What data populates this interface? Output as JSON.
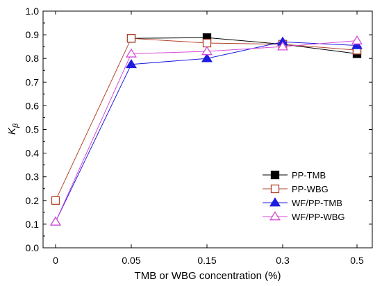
{
  "chart_data": {
    "type": "line",
    "categories": [
      "0",
      "0.05",
      "0.15",
      "0.3",
      "0.5"
    ],
    "xlabel": "TMB or WBG concentration (%)",
    "ylabel": "K",
    "ylabel_sub": "β",
    "ylim": [
      0.0,
      1.0
    ],
    "yticks": [
      "0.0",
      "0.1",
      "0.2",
      "0.3",
      "0.4",
      "0.5",
      "0.6",
      "0.7",
      "0.8",
      "0.9",
      "1.0"
    ],
    "grid": false,
    "legend_position": "center-right",
    "series": [
      {
        "name": "PP-TMB",
        "values": [
          null,
          0.885,
          0.888,
          0.86,
          0.82
        ],
        "color": "#000000",
        "marker": "square",
        "filled": true
      },
      {
        "name": "PP-WBG",
        "values": [
          0.2,
          0.885,
          0.865,
          0.86,
          0.835
        ],
        "color": "#b5442a",
        "marker": "square",
        "filled": false
      },
      {
        "name": "WF/PP-TMB",
        "values": [
          0.11,
          0.775,
          0.8,
          0.87,
          0.855
        ],
        "color": "#1d1de0",
        "marker": "triangle",
        "filled": true
      },
      {
        "name": "WF/PP-WBG",
        "values": [
          0.11,
          0.82,
          0.83,
          0.85,
          0.875
        ],
        "color": "#d64bd6",
        "marker": "triangle",
        "filled": false
      }
    ]
  }
}
